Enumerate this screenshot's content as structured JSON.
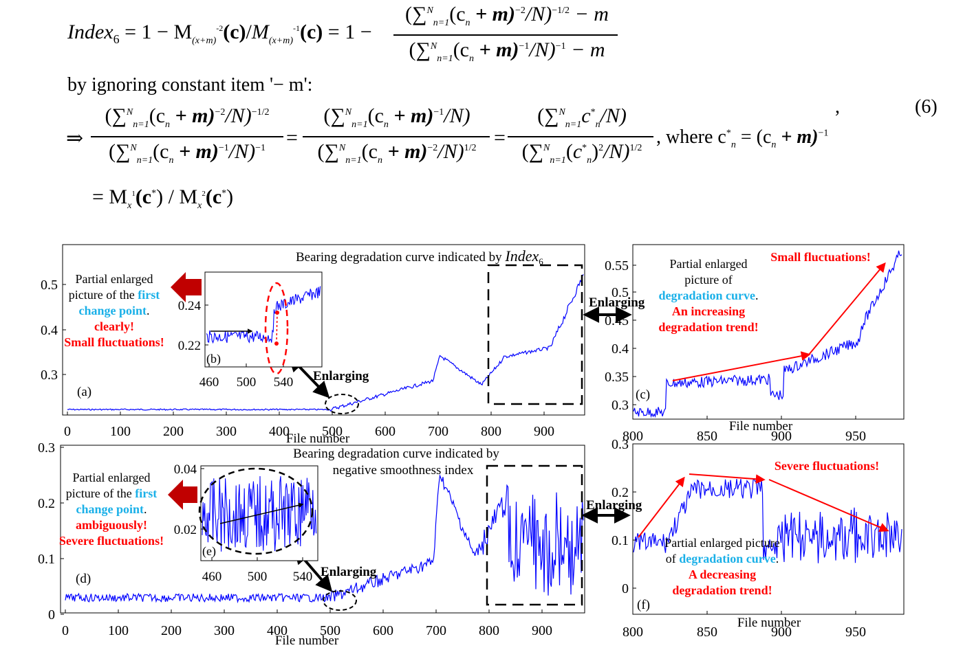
{
  "equation": {
    "lhs": "Index",
    "lhs_sub": "6",
    "eq1_middle": "= 1 − M",
    "sub_a": "(x+m)",
    "sup_a": "-2",
    "arg": "(c)",
    "slash": "/",
    "M2": "M",
    "sub_b": "(x+m)",
    "sup_b": "-1",
    "eq1_tail": "= 1 −",
    "num1": "(∑ n=1..N (c_n + m)^-2 / N)^-1/2 − m",
    "num1_text": "(∑",
    "num1_rest": "(c",
    "num1_rest2": " + m)",
    "num1_exp": "−2",
    "num1_tail": "/N)",
    "num1_tail_exp": "−1/2",
    "num1_minus": " − m",
    "den1_rest": " + m)",
    "den1_exp": "−1",
    "den1_tail": "/N)",
    "den1_tail_exp": "−1",
    "den1_minus": " − m",
    "sum_top": "N",
    "sum_bottom": "n=1",
    "n_sub": "n",
    "ignoring_line": "by ignoring constant item '− m':",
    "arrow": "⇒",
    "num2_exp_a": "−2",
    "num2_exp_b": "−1/2",
    "den2_exp_a": "−1",
    "den2_exp_b": "−1",
    "num3_exp_a": "−1",
    "den3_exp_a": "−2",
    "den3_exp_b": "1/2",
    "num4_text": "c",
    "num4_star": "*",
    "den4_exp_a": "2",
    "den4_exp_b": "1/2",
    "where": ", where c",
    "where_star": "*",
    "where_rhs": " = (c",
    "where_rhs2": " + m)",
    "where_exp": "−1",
    "equals": "=",
    "last_line_pre": "= M",
    "last_sub1": "x",
    "last_sup1": "1",
    "last_mid": "(c",
    "last_star": "*",
    "last_close": ") / M",
    "last_sub2": "x",
    "last_sup2": "2",
    "last_end": ")",
    "comma": ",",
    "number": "(6)"
  },
  "colors": {
    "series": "#0000ff",
    "emphasis_red": "#ff0000",
    "emphasis_blue": "#1ab0e8",
    "arrow_red": "#c00000"
  },
  "panels": {
    "a": {
      "label": "(a)",
      "title_pre": "Bearing degradation curve indicated by ",
      "title_italic": "Index",
      "title_sub": "6",
      "xlabel": "File number",
      "xticks": [
        "0",
        "100",
        "200",
        "300",
        "400",
        "500",
        "600",
        "700",
        "800",
        "900"
      ],
      "yticks": [
        "0.3",
        "0.4",
        "0.5"
      ],
      "ann_line1": "Partial enlarged",
      "ann_line2_pre": "picture of the ",
      "ann_line2_blue": "first",
      "ann_line3_blue": "change point",
      "ann_line3_post": ".",
      "ann_line4_red": "clearly!",
      "ann_line5_red": "Small fluctuations!",
      "enlarging": "Enlarging",
      "enlarging_right": "Enlarging"
    },
    "b": {
      "label": "(b)",
      "xticks": [
        "460",
        "500",
        "540"
      ],
      "yticks": [
        "0.22",
        "0.24"
      ]
    },
    "c": {
      "label": "(c)",
      "xlabel": "File number",
      "xticks": [
        "800",
        "850",
        "900",
        "950"
      ],
      "yticks": [
        "0.3",
        "0.35",
        "0.4",
        "0.45",
        "0.5",
        "0.55"
      ],
      "ann_line1": "Partial enlarged",
      "ann_line2": "picture of",
      "ann_line3_blue": "degradation curve",
      "ann_line3_post": ".",
      "ann_line4_red": "An increasing",
      "ann_line5_red": "degradation trend!",
      "ann_top_red": "Small fluctuations!"
    },
    "d": {
      "label": "(d)",
      "title_line1": "Bearing degradation curve indicated by",
      "title_line2": "negative smoothness index",
      "xlabel": "File number",
      "xticks": [
        "0",
        "100",
        "200",
        "300",
        "400",
        "500",
        "600",
        "700",
        "800",
        "900"
      ],
      "yticks": [
        "0",
        "0.1",
        "0.2",
        "0.3"
      ],
      "ann_line1": "Partial enlarged",
      "ann_line2_pre": "picture of the ",
      "ann_line2_blue": "first",
      "ann_line3_blue": "change point",
      "ann_line3_post": ".",
      "ann_line4_red": "ambiguously!",
      "ann_line5_red": "Severe fluctuations!",
      "enlarging": "Enlarging",
      "enlarging_right": "Enlarging"
    },
    "e": {
      "label": "(e)",
      "xticks": [
        "460",
        "500",
        "540"
      ],
      "yticks": [
        "0.02",
        "0.04"
      ]
    },
    "f": {
      "label": "(f)",
      "xlabel": "File number",
      "xticks": [
        "800",
        "850",
        "900",
        "950"
      ],
      "yticks": [
        "0",
        "0.1",
        "0.2",
        "0.3"
      ],
      "ann_line1": "Partial enlarged picture",
      "ann_line2_pre": "of ",
      "ann_line2_blue": "degradation curve",
      "ann_line2_post": ".",
      "ann_line3_red": "A decreasing",
      "ann_line4_red": "degradation trend!",
      "ann_top_red": "Severe fluctuations!"
    }
  }
}
